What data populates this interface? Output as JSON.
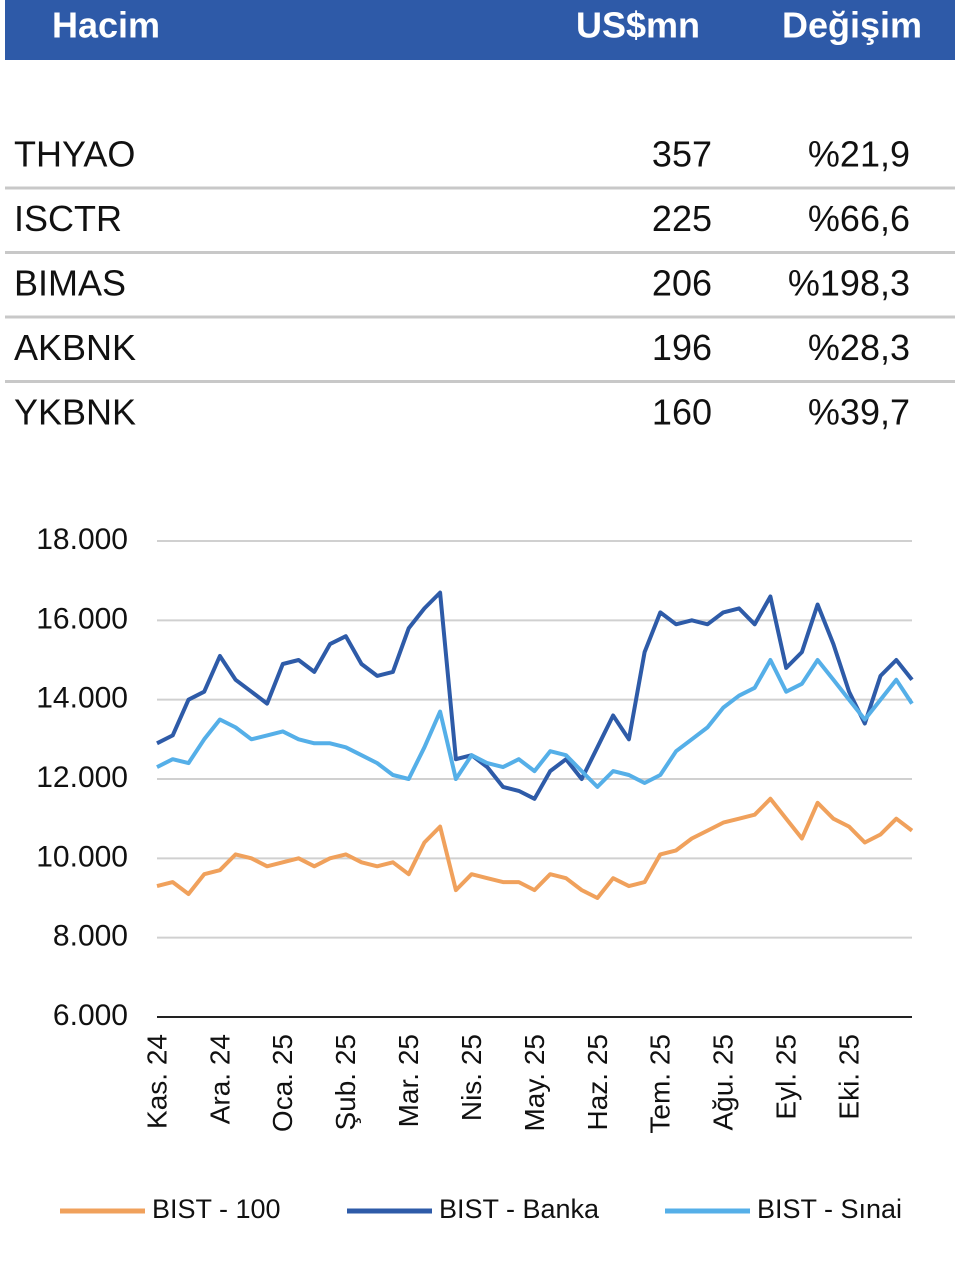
{
  "table": {
    "header": [
      "Hacim",
      "US$mn",
      "Değişim"
    ],
    "rows": [
      [
        "THYAO",
        "357",
        "%21,9"
      ],
      [
        "ISCTR",
        "225",
        "%66,6"
      ],
      [
        "BIMAS",
        "206",
        "%198,3"
      ],
      [
        "AKBNK",
        "196",
        "%28,3"
      ],
      [
        "YKBNK",
        "160",
        "%39,7"
      ]
    ]
  },
  "chart_data": {
    "type": "line",
    "categories": [
      "Kas. 24",
      null,
      null,
      null,
      "Ara. 24",
      null,
      null,
      null,
      "Oca. 25",
      null,
      null,
      null,
      "Şub. 25",
      null,
      null,
      null,
      "Mar. 25",
      null,
      null,
      null,
      "Nis. 25",
      null,
      null,
      null,
      "May. 25",
      null,
      null,
      null,
      "Haz. 25",
      null,
      null,
      null,
      "Tem. 25",
      null,
      null,
      null,
      "Ağu. 25",
      null,
      null,
      null,
      "Eyl. 25",
      null,
      null,
      null,
      "Eki. 25",
      null,
      null,
      null,
      null
    ],
    "series": [
      {
        "name": "BIST - 100",
        "color": "#f0a15c",
        "values": [
          9300,
          9400,
          9100,
          9600,
          9700,
          10100,
          10000,
          9800,
          9900,
          10000,
          9800,
          10000,
          10100,
          9900,
          9800,
          9900,
          9600,
          10400,
          10800,
          9200,
          9600,
          9500,
          9400,
          9400,
          9200,
          9600,
          9500,
          9200,
          9000,
          9500,
          9300,
          9400,
          10100,
          10200,
          10500,
          10700,
          10900,
          11000,
          11100,
          11500,
          11000,
          10500,
          11400,
          11000,
          10800,
          10400,
          10600,
          11000,
          10700
        ]
      },
      {
        "name": "BIST - Banka",
        "color": "#2e5ba8",
        "values": [
          12900,
          13100,
          14000,
          14200,
          15100,
          14500,
          14200,
          13900,
          14900,
          15000,
          14700,
          15400,
          15600,
          14900,
          14600,
          14700,
          15800,
          16300,
          16700,
          12500,
          12600,
          12300,
          11800,
          11700,
          11500,
          12200,
          12500,
          12000,
          12800,
          13600,
          13000,
          15200,
          16200,
          15900,
          16000,
          15900,
          16200,
          16300,
          15900,
          16600,
          14800,
          15200,
          16400,
          15400,
          14200,
          13400,
          14600,
          15000,
          14500
        ]
      },
      {
        "name": "BIST - Sınai",
        "color": "#55afe8",
        "values": [
          12300,
          12500,
          12400,
          13000,
          13500,
          13300,
          13000,
          13100,
          13200,
          13000,
          12900,
          12900,
          12800,
          12600,
          12400,
          12100,
          12000,
          12800,
          13700,
          12000,
          12600,
          12400,
          12300,
          12500,
          12200,
          12700,
          12600,
          12200,
          11800,
          12200,
          12100,
          11900,
          12100,
          12700,
          13000,
          13300,
          13800,
          14100,
          14300,
          15000,
          14200,
          14400,
          15000,
          14500,
          14000,
          13500,
          14000,
          14500,
          13900
        ]
      }
    ],
    "ylim": [
      6000,
      18000
    ],
    "yticks": [
      {
        "value": 6000,
        "label": "6.000"
      },
      {
        "value": 8000,
        "label": "8.000"
      },
      {
        "value": 10000,
        "label": "10.000"
      },
      {
        "value": 12000,
        "label": "12.000"
      },
      {
        "value": 14000,
        "label": "14.000"
      },
      {
        "value": 16000,
        "label": "16.000"
      },
      {
        "value": 18000,
        "label": "18.000"
      }
    ],
    "grid": true,
    "legend": "bottom"
  }
}
